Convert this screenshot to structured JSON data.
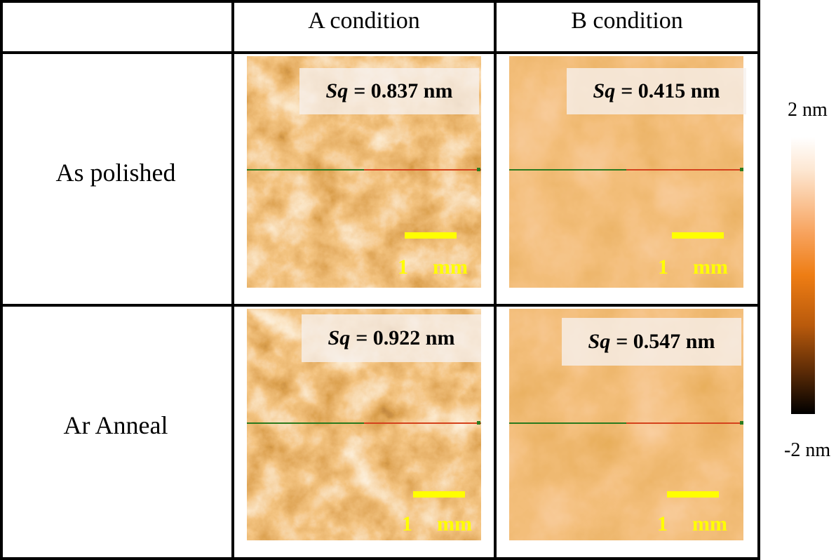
{
  "columns": [
    "A condition",
    "B condition"
  ],
  "rows": [
    "As polished",
    "Ar Anneal"
  ],
  "panels": [
    {
      "row": "As polished",
      "col": "A condition",
      "sq_label": "Sq",
      "sq_value": "= 0.837 nm",
      "scale_text": "1  mm"
    },
    {
      "row": "As polished",
      "col": "B condition",
      "sq_label": "Sq",
      "sq_value": "= 0.415 nm",
      "scale_text": "1  mm"
    },
    {
      "row": "Ar Anneal",
      "col": "A condition",
      "sq_label": "Sq",
      "sq_value": "= 0.922 nm",
      "scale_text": "1  mm"
    },
    {
      "row": "Ar Anneal",
      "col": "B condition",
      "sq_label": "Sq",
      "sq_value": "= 0.547 nm",
      "scale_text": "1  mm"
    }
  ],
  "colorbar": {
    "max_label": "2 nm",
    "min_label": "-2 nm"
  },
  "colors": {
    "scale_bar": "#ffff00",
    "profile_left": "#2a7a1e",
    "profile_right": "#d4421c"
  }
}
